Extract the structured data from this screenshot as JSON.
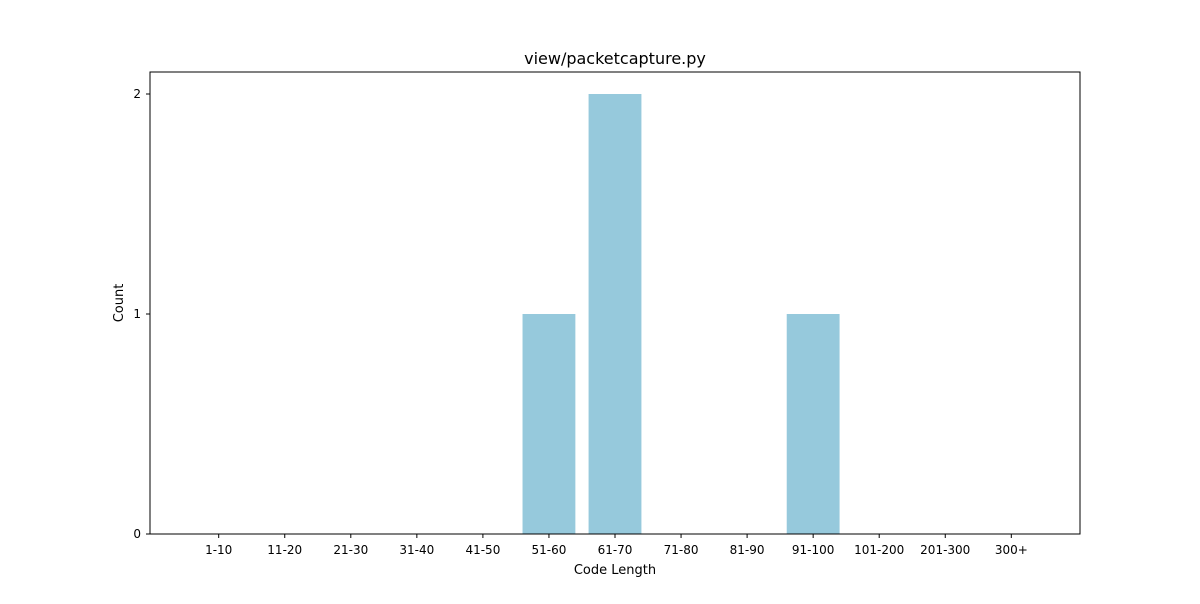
{
  "chart_data": {
    "type": "bar",
    "title": "view/packetcapture.py",
    "xlabel": "Code Length",
    "ylabel": "Count",
    "categories": [
      "1-10",
      "11-20",
      "21-30",
      "31-40",
      "41-50",
      "51-60",
      "61-70",
      "71-80",
      "81-90",
      "91-100",
      "101-200",
      "201-300",
      "300+"
    ],
    "values": [
      0,
      0,
      0,
      0,
      0,
      1,
      2,
      0,
      0,
      1,
      0,
      0,
      0
    ],
    "ylim": [
      0,
      2.1
    ],
    "yticks": [
      0,
      1,
      2
    ],
    "ytick_labels": [
      "0",
      "1",
      "2"
    ],
    "grid": false,
    "bar_color": "#96c9dc"
  }
}
